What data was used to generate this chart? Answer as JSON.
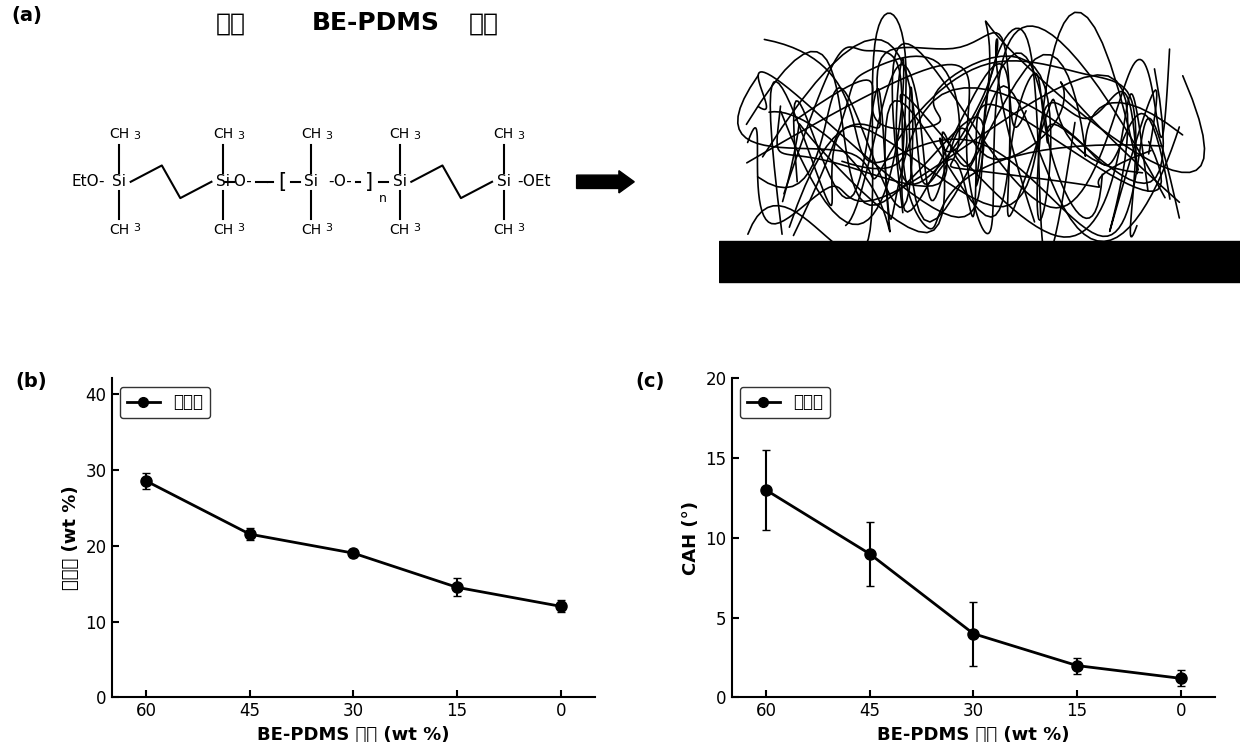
{
  "title_cn": "减少",
  "title_en": "BE-PDMS",
  "title_cn2": "用量",
  "panel_b": {
    "x": [
      60,
      45,
      30,
      15,
      0
    ],
    "y": [
      28.5,
      21.5,
      19.0,
      14.5,
      12.0
    ],
    "yerr": [
      1.0,
      0.8,
      0.5,
      1.2,
      0.8
    ],
    "xlabel_en": "BE-PDMS ",
    "xlabel_cn": "含量",
    "xlabel_unit": " (wt %)",
    "ylabel_cn": "溶胀率",
    "ylabel_unit": " (wt %)",
    "legend_cn": "十六烷",
    "ylim": [
      0,
      42
    ],
    "yticks": [
      0,
      10,
      20,
      30,
      40
    ],
    "xticks": [
      0,
      15,
      30,
      45,
      60
    ]
  },
  "panel_c": {
    "x": [
      60,
      45,
      30,
      15,
      0
    ],
    "y": [
      13.0,
      9.0,
      4.0,
      2.0,
      1.2
    ],
    "yerr": [
      2.5,
      2.0,
      2.0,
      0.5,
      0.5
    ],
    "xlabel_en": "BE-PDMS ",
    "xlabel_cn": "含量",
    "xlabel_unit": " (wt %)",
    "ylabel": "CAH (°)",
    "legend_cn": "十六烷",
    "ylim": [
      0,
      20
    ],
    "yticks": [
      0,
      5,
      10,
      15,
      20
    ],
    "xticks": [
      0,
      15,
      30,
      45,
      60
    ]
  },
  "label_a": "(a)",
  "label_b": "(b)",
  "label_c": "(c)",
  "bg_color": "#ffffff"
}
